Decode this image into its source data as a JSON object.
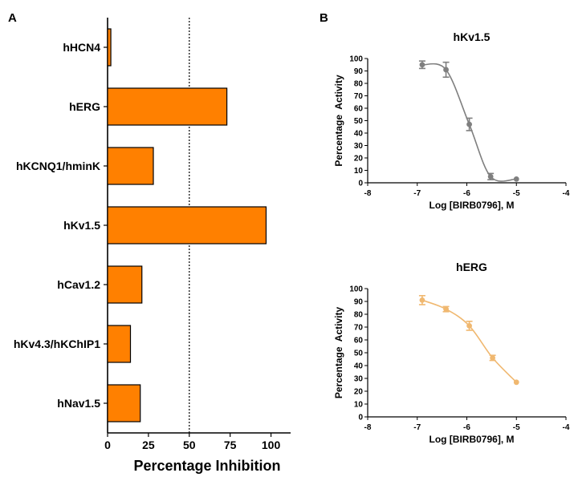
{
  "panels": {
    "a": "A",
    "b": "B"
  },
  "chart_data": [
    {
      "type": "bar",
      "orientation": "horizontal",
      "title": "",
      "xlabel": "Percentage Inhibition",
      "ylabel": "",
      "xlim": [
        0,
        112
      ],
      "xticks": [
        "0",
        "25",
        "50",
        "75",
        "100"
      ],
      "reference_line": 50,
      "categories": [
        "hHCN4",
        "hERG",
        "hKCNQ1/hminK",
        "hKv1.5",
        "hCav1.2",
        "hKv4.3/hKChIP1",
        "hNav1.5"
      ],
      "values": [
        2,
        73,
        28,
        97,
        21,
        14,
        20
      ],
      "bar_color": "#ff8000"
    },
    {
      "type": "line",
      "title": "hKv1.5",
      "xlabel": "Log [BIRB0796], M",
      "ylabel": "Percentage  Activity",
      "xlim": [
        -8,
        -4
      ],
      "ylim": [
        0,
        100
      ],
      "xticks": [
        "-8",
        "-7",
        "-6",
        "-5",
        "-4"
      ],
      "yticks": [
        "0",
        "10",
        "20",
        "30",
        "40",
        "50",
        "60",
        "70",
        "80",
        "90",
        "100"
      ],
      "color": "#7f7f7f",
      "x": [
        -6.9,
        -6.42,
        -5.95,
        -5.52,
        -5.0
      ],
      "y": [
        95,
        91,
        47,
        5,
        3
      ],
      "err": [
        3,
        6,
        5,
        2.5,
        0
      ]
    },
    {
      "type": "line",
      "title": "hERG",
      "xlabel": "Log [BIRB0796], M",
      "ylabel": "Percentage  Activity",
      "xlim": [
        -8,
        -4
      ],
      "ylim": [
        0,
        100
      ],
      "xticks": [
        "-8",
        "-7",
        "-6",
        "-5",
        "-4"
      ],
      "yticks": [
        "0",
        "10",
        "20",
        "30",
        "40",
        "50",
        "60",
        "70",
        "80",
        "90",
        "100"
      ],
      "color": "#f0b870",
      "x": [
        -6.9,
        -6.42,
        -5.95,
        -5.48,
        -5.0
      ],
      "y": [
        91,
        84,
        71,
        46,
        27
      ],
      "err": [
        3.5,
        2,
        3.5,
        2,
        0
      ]
    }
  ]
}
